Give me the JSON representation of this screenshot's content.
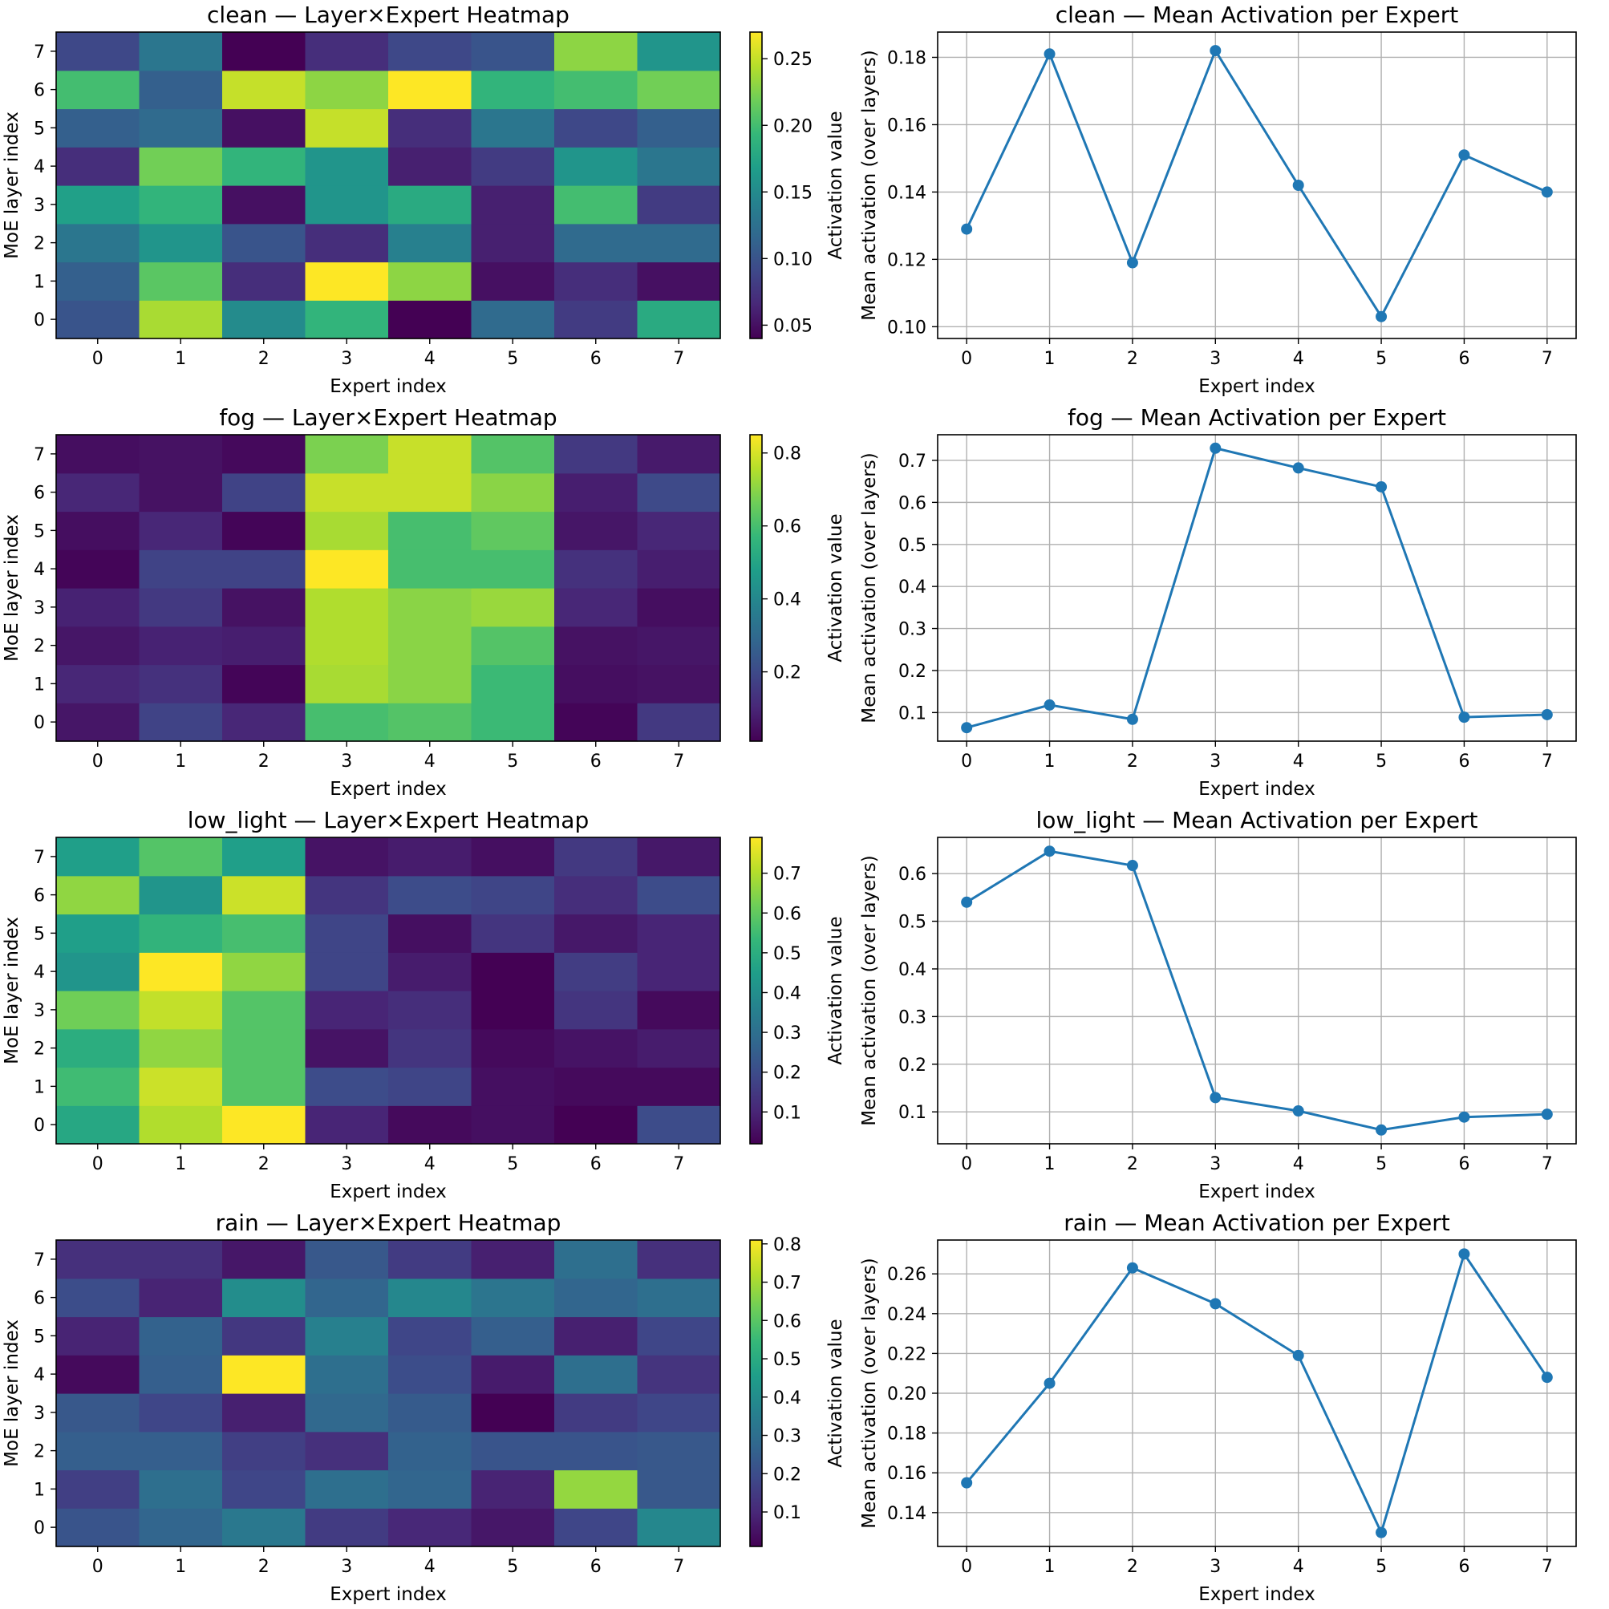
{
  "chart_data": [
    {
      "type": "heatmap",
      "title": "clean — Layer×Expert Heatmap",
      "xlabel": "Expert index",
      "ylabel": "MoE layer index",
      "colorbar_label": "Activation value",
      "colormap": "viridis",
      "x": [
        0,
        1,
        2,
        3,
        4,
        5,
        6,
        7
      ],
      "y": [
        0,
        1,
        2,
        3,
        4,
        5,
        6,
        7
      ],
      "vmin": 0.04,
      "vmax": 0.27,
      "colorbar_ticks": [
        "0.05",
        "0.10",
        "0.15",
        "0.20",
        "0.25"
      ],
      "colorbar_tick_values": [
        0.05,
        0.1,
        0.15,
        0.2,
        0.25
      ],
      "values": [
        [
          0.1,
          0.24,
          0.15,
          0.19,
          0.04,
          0.12,
          0.08,
          0.18
        ],
        [
          0.11,
          0.21,
          0.07,
          0.27,
          0.23,
          0.05,
          0.07,
          0.05
        ],
        [
          0.13,
          0.16,
          0.1,
          0.07,
          0.14,
          0.06,
          0.12,
          0.12
        ],
        [
          0.17,
          0.19,
          0.05,
          0.16,
          0.18,
          0.06,
          0.2,
          0.08
        ],
        [
          0.07,
          0.22,
          0.19,
          0.16,
          0.06,
          0.08,
          0.16,
          0.13
        ],
        [
          0.11,
          0.12,
          0.05,
          0.25,
          0.07,
          0.13,
          0.09,
          0.11
        ],
        [
          0.2,
          0.11,
          0.25,
          0.23,
          0.27,
          0.19,
          0.2,
          0.22
        ],
        [
          0.09,
          0.13,
          0.04,
          0.07,
          0.09,
          0.1,
          0.23,
          0.16
        ]
      ]
    },
    {
      "type": "line",
      "title": "clean — Mean Activation per Expert",
      "xlabel": "Expert index",
      "ylabel": "Mean activation (over layers)",
      "x": [
        0,
        1,
        2,
        3,
        4,
        5,
        6,
        7
      ],
      "values": [
        0.129,
        0.181,
        0.119,
        0.182,
        0.142,
        0.103,
        0.151,
        0.14
      ],
      "ylim": [
        0.0965,
        0.1875
      ],
      "xticks": [
        "0",
        "1",
        "2",
        "3",
        "4",
        "5",
        "6",
        "7"
      ],
      "yticks": [
        "0.10",
        "0.12",
        "0.14",
        "0.16",
        "0.18"
      ],
      "ytick_values": [
        0.1,
        0.12,
        0.14,
        0.16,
        0.18
      ],
      "grid": true
    },
    {
      "type": "heatmap",
      "title": "fog — Layer×Expert Heatmap",
      "xlabel": "Expert index",
      "ylabel": "MoE layer index",
      "colorbar_label": "Activation value",
      "colormap": "viridis",
      "x": [
        0,
        1,
        2,
        3,
        4,
        5,
        6,
        7
      ],
      "y": [
        0,
        1,
        2,
        3,
        4,
        5,
        6,
        7
      ],
      "vmin": 0.01,
      "vmax": 0.85,
      "colorbar_ticks": [
        "0.2",
        "0.4",
        "0.6",
        "0.8"
      ],
      "colorbar_tick_values": [
        0.2,
        0.4,
        0.6,
        0.8
      ],
      "values": [
        [
          0.06,
          0.18,
          0.1,
          0.6,
          0.62,
          0.58,
          0.02,
          0.15
        ],
        [
          0.1,
          0.13,
          0.02,
          0.74,
          0.7,
          0.58,
          0.04,
          0.05
        ],
        [
          0.06,
          0.09,
          0.08,
          0.75,
          0.7,
          0.62,
          0.05,
          0.06
        ],
        [
          0.09,
          0.15,
          0.05,
          0.75,
          0.7,
          0.72,
          0.1,
          0.04
        ],
        [
          0.02,
          0.18,
          0.18,
          0.85,
          0.6,
          0.6,
          0.13,
          0.08
        ],
        [
          0.04,
          0.1,
          0.02,
          0.74,
          0.6,
          0.64,
          0.06,
          0.1
        ],
        [
          0.1,
          0.05,
          0.18,
          0.78,
          0.78,
          0.7,
          0.08,
          0.2
        ],
        [
          0.04,
          0.05,
          0.03,
          0.68,
          0.78,
          0.62,
          0.15,
          0.07
        ]
      ]
    },
    {
      "type": "line",
      "title": "fog — Mean Activation per Expert",
      "xlabel": "Expert index",
      "ylabel": "Mean activation (over layers)",
      "x": [
        0,
        1,
        2,
        3,
        4,
        5,
        6,
        7
      ],
      "values": [
        0.064,
        0.118,
        0.084,
        0.729,
        0.682,
        0.637,
        0.089,
        0.095
      ],
      "ylim": [
        0.032,
        0.761
      ],
      "xticks": [
        "0",
        "1",
        "2",
        "3",
        "4",
        "5",
        "6",
        "7"
      ],
      "yticks": [
        "0.1",
        "0.2",
        "0.3",
        "0.4",
        "0.5",
        "0.6",
        "0.7"
      ],
      "ytick_values": [
        0.1,
        0.2,
        0.3,
        0.4,
        0.5,
        0.6,
        0.7
      ],
      "grid": true
    },
    {
      "type": "heatmap",
      "title": "low_light — Layer×Expert Heatmap",
      "xlabel": "Expert index",
      "ylabel": "MoE layer index",
      "colorbar_label": "Activation value",
      "colormap": "viridis",
      "x": [
        0,
        1,
        2,
        3,
        4,
        5,
        6,
        7
      ],
      "y": [
        0,
        1,
        2,
        3,
        4,
        5,
        6,
        7
      ],
      "vmin": 0.02,
      "vmax": 0.79,
      "colorbar_ticks": [
        "0.1",
        "0.2",
        "0.3",
        "0.4",
        "0.5",
        "0.6",
        "0.7"
      ],
      "colorbar_tick_values": [
        0.1,
        0.2,
        0.3,
        0.4,
        0.5,
        0.6,
        0.7
      ],
      "values": [
        [
          0.48,
          0.7,
          0.79,
          0.1,
          0.04,
          0.05,
          0.02,
          0.2
        ],
        [
          0.55,
          0.73,
          0.58,
          0.2,
          0.18,
          0.05,
          0.04,
          0.04
        ],
        [
          0.5,
          0.66,
          0.58,
          0.06,
          0.14,
          0.04,
          0.06,
          0.08
        ],
        [
          0.62,
          0.72,
          0.58,
          0.1,
          0.12,
          0.02,
          0.14,
          0.04
        ],
        [
          0.42,
          0.79,
          0.66,
          0.18,
          0.08,
          0.02,
          0.16,
          0.1
        ],
        [
          0.45,
          0.52,
          0.56,
          0.18,
          0.05,
          0.14,
          0.07,
          0.1
        ],
        [
          0.66,
          0.42,
          0.73,
          0.14,
          0.2,
          0.18,
          0.12,
          0.2
        ],
        [
          0.45,
          0.58,
          0.45,
          0.06,
          0.08,
          0.05,
          0.15,
          0.07
        ]
      ]
    },
    {
      "type": "line",
      "title": "low_light — Mean Activation per Expert",
      "xlabel": "Expert index",
      "ylabel": "Mean activation (over layers)",
      "x": [
        0,
        1,
        2,
        3,
        4,
        5,
        6,
        7
      ],
      "values": [
        0.54,
        0.647,
        0.617,
        0.13,
        0.102,
        0.062,
        0.089,
        0.095
      ],
      "ylim": [
        0.033,
        0.676
      ],
      "xticks": [
        "0",
        "1",
        "2",
        "3",
        "4",
        "5",
        "6",
        "7"
      ],
      "yticks": [
        "0.1",
        "0.2",
        "0.3",
        "0.4",
        "0.5",
        "0.6"
      ],
      "ytick_values": [
        0.1,
        0.2,
        0.3,
        0.4,
        0.5,
        0.6
      ],
      "grid": true
    },
    {
      "type": "heatmap",
      "title": "rain — Layer×Expert Heatmap",
      "xlabel": "Expert index",
      "ylabel": "MoE layer index",
      "colorbar_label": "Activation value",
      "colormap": "viridis",
      "x": [
        0,
        1,
        2,
        3,
        4,
        5,
        6,
        7
      ],
      "y": [
        0,
        1,
        2,
        3,
        4,
        5,
        6,
        7
      ],
      "vmin": 0.01,
      "vmax": 0.81,
      "colorbar_ticks": [
        "0.1",
        "0.2",
        "0.3",
        "0.4",
        "0.5",
        "0.6",
        "0.7",
        "0.8"
      ],
      "colorbar_tick_values": [
        0.1,
        0.2,
        0.3,
        0.4,
        0.5,
        0.6,
        0.7,
        0.8
      ],
      "values": [
        [
          0.22,
          0.27,
          0.33,
          0.15,
          0.1,
          0.06,
          0.18,
          0.38
        ],
        [
          0.16,
          0.3,
          0.18,
          0.3,
          0.27,
          0.09,
          0.68,
          0.23
        ],
        [
          0.25,
          0.25,
          0.16,
          0.12,
          0.26,
          0.22,
          0.22,
          0.23
        ],
        [
          0.23,
          0.18,
          0.08,
          0.28,
          0.24,
          0.01,
          0.15,
          0.18
        ],
        [
          0.03,
          0.25,
          0.81,
          0.3,
          0.2,
          0.07,
          0.3,
          0.13
        ],
        [
          0.09,
          0.26,
          0.14,
          0.36,
          0.18,
          0.25,
          0.08,
          0.18
        ],
        [
          0.2,
          0.09,
          0.4,
          0.27,
          0.38,
          0.32,
          0.27,
          0.3
        ],
        [
          0.12,
          0.12,
          0.06,
          0.23,
          0.15,
          0.08,
          0.3,
          0.12
        ]
      ]
    },
    {
      "type": "line",
      "title": "rain — Mean Activation per Expert",
      "xlabel": "Expert index",
      "ylabel": "Mean activation (over layers)",
      "x": [
        0,
        1,
        2,
        3,
        4,
        5,
        6,
        7
      ],
      "values": [
        0.155,
        0.205,
        0.263,
        0.245,
        0.219,
        0.13,
        0.27,
        0.208
      ],
      "ylim": [
        0.123,
        0.277
      ],
      "xticks": [
        "0",
        "1",
        "2",
        "3",
        "4",
        "5",
        "6",
        "7"
      ],
      "yticks": [
        "0.14",
        "0.16",
        "0.18",
        "0.20",
        "0.22",
        "0.24",
        "0.26"
      ],
      "ytick_values": [
        0.14,
        0.16,
        0.18,
        0.2,
        0.22,
        0.24,
        0.26
      ],
      "grid": true
    }
  ]
}
